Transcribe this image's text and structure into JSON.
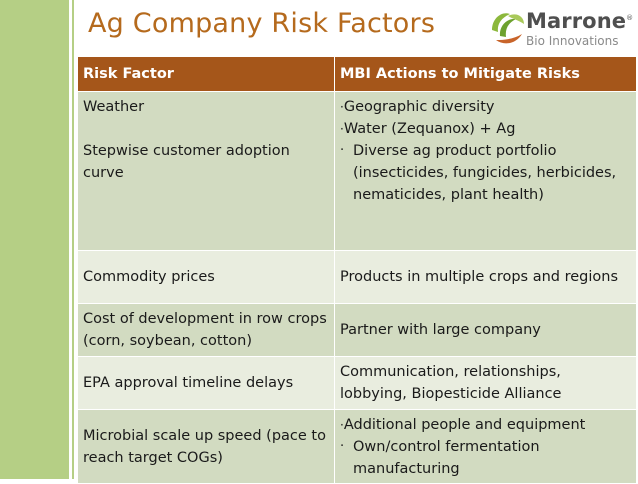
{
  "slide": {
    "title": "Ag Company Risk Factors",
    "logo": {
      "name": "Marrone",
      "trademark": "®",
      "subtitle": "Bio Innovations"
    }
  },
  "table": {
    "headers": [
      "Risk Factor",
      "MBI Actions to Mitigate Risks"
    ],
    "rows": [
      {
        "risk": [
          "Weather",
          "Stepwise customer adoption curve"
        ],
        "actions": [
          {
            "bullet": "·",
            "text": "Geographic diversity"
          },
          {
            "bullet": "·",
            "text": "Water (Zequanox) + Ag"
          },
          {
            "bullet": "·",
            "text": "Diverse ag product portfolio (insecticides, fungicides, herbicides, nematicides, plant health)"
          }
        ]
      },
      {
        "risk": [
          "Commodity prices"
        ],
        "actions": [
          {
            "text": "Products in multiple crops and regions"
          }
        ]
      },
      {
        "risk": [
          "Cost of development in row crops (corn, soybean, cotton)"
        ],
        "actions": [
          {
            "text": "Partner with large company"
          }
        ]
      },
      {
        "risk": [
          "EPA approval timeline delays"
        ],
        "actions": [
          {
            "text": "Communication, relationships, lobbying, Biopesticide Alliance"
          }
        ]
      },
      {
        "risk": [
          "Microbial scale up speed (pace to reach target COGs)"
        ],
        "actions": [
          {
            "bullet": "·",
            "text": "Additional people and equipment"
          },
          {
            "bullet": "·",
            "text": "Own/control fermentation manufacturing"
          }
        ]
      }
    ]
  },
  "colors": {
    "accent_green": "#b5cf85",
    "title_orange": "#b56a1d",
    "header_brown": "#a5561a",
    "row_dark": "#d2dbc1",
    "row_light": "#e9eddf"
  }
}
